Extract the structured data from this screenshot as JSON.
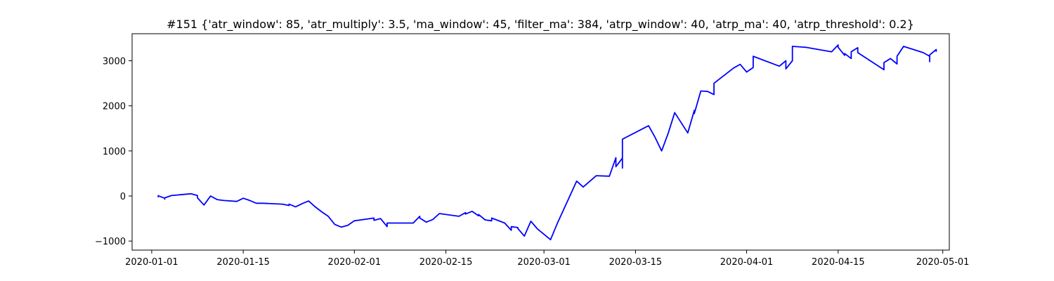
{
  "chart_data": {
    "type": "line",
    "title": "#151 {'atr_window': 85, 'atr_multiply': 3.5, 'ma_window': 45, 'filter_ma': 384, 'atrp_window': 40, 'atrp_ma': 40, 'atrp_threshold': 0.2}",
    "xlabel": "",
    "ylabel": "",
    "xlim": [
      "2019-12-29",
      "2020-05-02"
    ],
    "ylim": [
      -1200,
      3600
    ],
    "grid": false,
    "legend": "none",
    "x_ticks": [
      "2020-01-01",
      "2020-01-15",
      "2020-02-01",
      "2020-02-15",
      "2020-03-01",
      "2020-03-15",
      "2020-04-01",
      "2020-04-15",
      "2020-05-01"
    ],
    "y_ticks": [
      -1000,
      0,
      1000,
      2000,
      3000
    ],
    "y_tick_labels": [
      "−1000",
      "0",
      "1000",
      "2000",
      "3000"
    ],
    "color": "#0000ff",
    "series": [
      {
        "x": [
          "2020-01-02",
          "2020-01-02",
          "2020-01-02",
          "2020-01-02",
          "2020-01-03",
          "2020-01-03",
          "2020-01-03",
          "2020-01-03",
          "2020-01-04",
          "2020-01-07",
          "2020-01-08",
          "2020-01-08",
          "2020-01-09",
          "2020-01-10",
          "2020-01-11",
          "2020-01-12",
          "2020-01-14",
          "2020-01-15",
          "2020-01-16",
          "2020-01-17",
          "2020-01-18",
          "2020-01-21",
          "2020-01-22",
          "2020-01-22",
          "2020-01-23",
          "2020-01-24",
          "2020-01-25",
          "2020-01-26",
          "2020-01-27",
          "2020-01-28",
          "2020-01-29",
          "2020-01-30",
          "2020-01-31",
          "2020-02-01",
          "2020-02-04",
          "2020-02-04",
          "2020-02-05",
          "2020-02-06",
          "2020-02-06",
          "2020-02-10",
          "2020-02-11",
          "2020-02-11",
          "2020-02-12",
          "2020-02-13",
          "2020-02-14",
          "2020-02-17",
          "2020-02-18",
          "2020-02-18",
          "2020-02-19",
          "2020-02-20",
          "2020-02-20",
          "2020-02-21",
          "2020-02-22",
          "2020-02-22",
          "2020-02-24",
          "2020-02-25",
          "2020-02-25",
          "2020-02-26",
          "2020-02-26",
          "2020-02-27",
          "2020-02-28",
          "2020-02-29",
          "2020-03-02",
          "2020-03-03",
          "2020-03-06",
          "2020-03-07",
          "2020-03-09",
          "2020-03-11",
          "2020-03-12",
          "2020-03-12",
          "2020-03-13",
          "2020-03-13",
          "2020-03-13",
          "2020-03-17",
          "2020-03-18",
          "2020-03-19",
          "2020-03-20",
          "2020-03-21",
          "2020-03-23",
          "2020-03-24",
          "2020-03-24",
          "2020-03-25",
          "2020-03-26",
          "2020-03-27",
          "2020-03-27",
          "2020-03-30",
          "2020-03-31",
          "2020-04-01",
          "2020-04-02",
          "2020-04-02",
          "2020-04-06",
          "2020-04-07",
          "2020-04-07",
          "2020-04-08",
          "2020-04-08",
          "2020-04-10",
          "2020-04-14",
          "2020-04-15",
          "2020-04-15",
          "2020-04-16",
          "2020-04-16",
          "2020-04-17",
          "2020-04-17",
          "2020-04-18",
          "2020-04-18",
          "2020-04-22",
          "2020-04-22",
          "2020-04-23",
          "2020-04-24",
          "2020-04-24",
          "2020-04-25",
          "2020-04-28",
          "2020-04-29",
          "2020-04-29",
          "2020-04-29",
          "2020-04-30",
          "2020-04-30"
        ],
        "y": [
          0,
          10,
          -20,
          5,
          -50,
          -40,
          -70,
          -40,
          10,
          50,
          10,
          -40,
          -200,
          0,
          -80,
          -100,
          -120,
          -50,
          -100,
          -160,
          -160,
          -180,
          -210,
          -180,
          -240,
          -170,
          -110,
          -240,
          -350,
          -450,
          -630,
          -690,
          -650,
          -550,
          -490,
          -540,
          -500,
          -680,
          -600,
          -600,
          -450,
          -490,
          -580,
          -520,
          -390,
          -450,
          -370,
          -400,
          -340,
          -440,
          -410,
          -530,
          -550,
          -490,
          -600,
          -760,
          -680,
          -700,
          -720,
          -890,
          -560,
          -730,
          -970,
          -620,
          330,
          200,
          450,
          440,
          850,
          650,
          840,
          620,
          1260,
          1560,
          1300,
          1000,
          1390,
          1850,
          1400,
          1900,
          1830,
          2330,
          2320,
          2250,
          2500,
          2840,
          2920,
          2750,
          2850,
          3100,
          2880,
          3000,
          2820,
          3000,
          3320,
          3300,
          3200,
          3350,
          3300,
          3120,
          3160,
          3050,
          3200,
          3290,
          3180,
          2800,
          2960,
          3050,
          2930,
          3100,
          3320,
          3180,
          3100,
          2980,
          3130,
          3250,
          3200
        ]
      }
    ]
  }
}
